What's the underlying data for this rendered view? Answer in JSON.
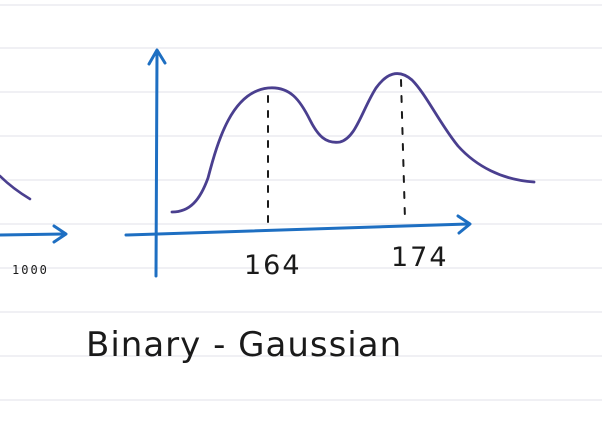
{
  "colors": {
    "background": "#ffffff",
    "ruled_line": "#e6e6ee",
    "axis_ink": "#1e6fc2",
    "curve_ink": "#4a3f8f",
    "label_ink": "#1a1a1a"
  },
  "labels": {
    "left_axis_tick": "1000",
    "peak_1": "164",
    "peak_2": "174",
    "caption": "Binary - Gaussian"
  }
}
